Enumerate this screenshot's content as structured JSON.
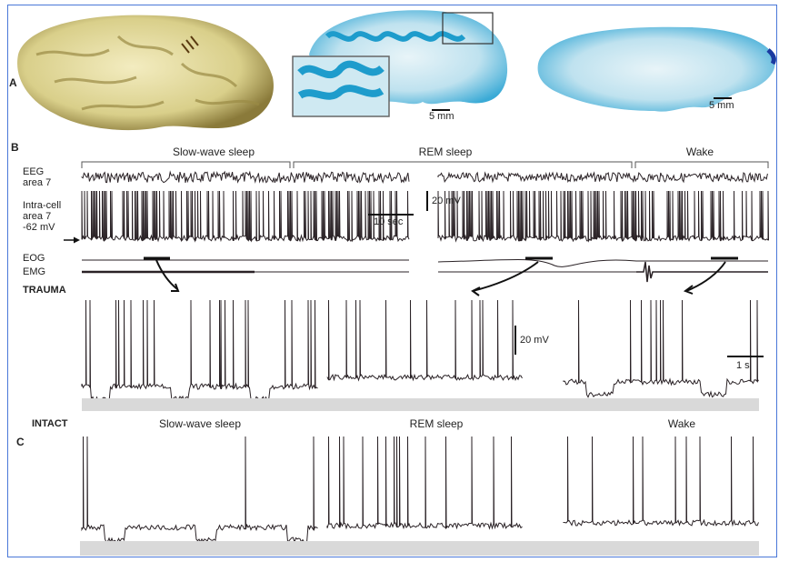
{
  "panels": {
    "a": "A",
    "b": "B",
    "c": "C"
  },
  "panel_a": {
    "scale_coronal": "5 mm",
    "scale_sagittal": "5 mm"
  },
  "panel_b": {
    "states": [
      "Slow-wave sleep",
      "REM sleep",
      "Wake"
    ],
    "eeg_label": [
      "EEG",
      "area 7"
    ],
    "intracell_label": [
      "Intra-cell",
      "area 7",
      "-62 mV"
    ],
    "eog_label": "EOG",
    "emg_label": "EMG",
    "scale_voltage": "20 mV",
    "scale_time": "10 sec",
    "trauma_label": "TRAUMA",
    "scale_voltage_expanded": "20 mV",
    "scale_time_expanded": "1 s"
  },
  "panel_c": {
    "intact_label": "INTACT",
    "states": [
      "Slow-wave sleep",
      "REM sleep",
      "Wake"
    ]
  },
  "colors": {
    "frame": "#4a78d8",
    "stain": "#3fb0d8",
    "trace": "#2a2226",
    "baseline_band": "#d9d9d9"
  }
}
